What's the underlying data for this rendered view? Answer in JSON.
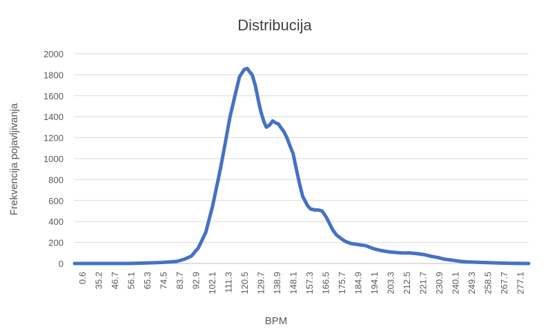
{
  "chart_data": {
    "type": "line",
    "title": "Distribucija",
    "xlabel": "BPM",
    "ylabel": "Frekvencija pojavljivanja",
    "ylim": [
      0,
      2000
    ],
    "yticks": [
      0,
      200,
      400,
      600,
      800,
      1000,
      1200,
      1400,
      1600,
      1800,
      2000
    ],
    "xlim": [
      0.6,
      288
    ],
    "xticks": [
      "0.6",
      "35.2",
      "46.7",
      "56.1",
      "65.3",
      "74.5",
      "83.7",
      "92.9",
      "102.1",
      "111.3",
      "120.5",
      "129.7",
      "138.9",
      "148.1",
      "157.3",
      "166.5",
      "175.7",
      "184.9",
      "194.1",
      "203.3",
      "212.5",
      "221.7",
      "230.9",
      "240.1",
      "249.3",
      "258.5",
      "267.7",
      "277.1"
    ],
    "grid": true,
    "legend": "none",
    "color": "#4472c4",
    "series": [
      {
        "x": [
          0.6,
          35.2,
          46.7,
          56.1,
          65.3,
          70,
          74.5,
          79,
          83.7,
          88,
          92.9,
          96,
          99,
          102.1,
          105,
          108,
          110,
          111.3,
          113,
          115,
          117,
          118.5,
          120.5,
          122,
          124,
          126,
          128,
          129.7,
          131,
          133,
          135,
          137,
          138.9,
          141,
          143,
          145,
          148.1,
          150,
          153,
          155,
          157.3,
          160,
          162,
          164,
          166.5,
          170,
          172,
          175.7,
          180,
          184.9,
          190,
          194.1,
          200,
          203.3,
          208,
          212.5,
          217,
          221.7,
          226,
          230.9,
          235,
          240.1,
          245,
          249.3,
          258.5,
          267.7,
          277.1,
          288
        ],
        "y": [
          0,
          0,
          5,
          10,
          20,
          40,
          70,
          150,
          300,
          550,
          900,
          1150,
          1400,
          1600,
          1780,
          1850,
          1860,
          1830,
          1800,
          1700,
          1550,
          1450,
          1350,
          1300,
          1320,
          1360,
          1340,
          1330,
          1300,
          1260,
          1200,
          1120,
          1050,
          900,
          760,
          640,
          550,
          520,
          510,
          510,
          500,
          440,
          380,
          320,
          270,
          230,
          210,
          190,
          180,
          170,
          140,
          125,
          110,
          105,
          100,
          100,
          95,
          85,
          70,
          55,
          40,
          30,
          20,
          15,
          10,
          5,
          2,
          0
        ]
      }
    ]
  }
}
